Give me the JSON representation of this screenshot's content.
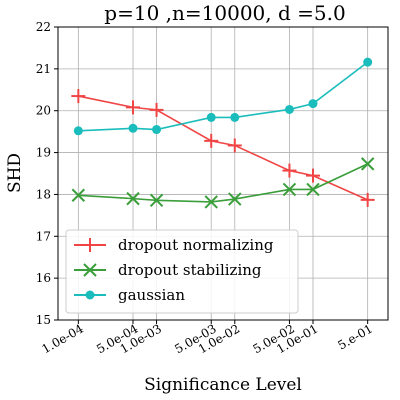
{
  "chart_data": {
    "type": "line",
    "title": "p=10 ,n=10000, d =5.0",
    "xlabel": "Significance Level",
    "ylabel": "SHD",
    "ylim": [
      15,
      22
    ],
    "x": [
      0.0001,
      0.0005,
      0.001,
      0.005,
      0.01,
      0.05,
      0.1,
      0.5
    ],
    "x_scale": "log",
    "xtick_labels": [
      "1.0e-04",
      "5.0e-04",
      "1.0e-03",
      "5.0e-03",
      "1.0e-02",
      "5.0e-02",
      "1.0e-01",
      "5.e-01"
    ],
    "yticks": [
      15,
      16,
      17,
      18,
      19,
      20,
      21,
      22
    ],
    "grid": true,
    "legend_position": "lower-left",
    "series": [
      {
        "name": "dropout normalizing",
        "color": "#f04545",
        "marker": "plus",
        "values": [
          20.35,
          20.08,
          20.02,
          19.28,
          19.17,
          18.57,
          18.45,
          17.87
        ]
      },
      {
        "name": "dropout stabilizing",
        "color": "#3a9e3a",
        "marker": "x",
        "values": [
          17.98,
          17.9,
          17.86,
          17.82,
          17.89,
          18.12,
          18.12,
          18.73
        ]
      },
      {
        "name": "gaussian",
        "color": "#1bbcbc",
        "marker": "circle",
        "values": [
          19.52,
          19.58,
          19.55,
          19.84,
          19.84,
          20.03,
          20.17,
          21.16
        ]
      }
    ]
  }
}
